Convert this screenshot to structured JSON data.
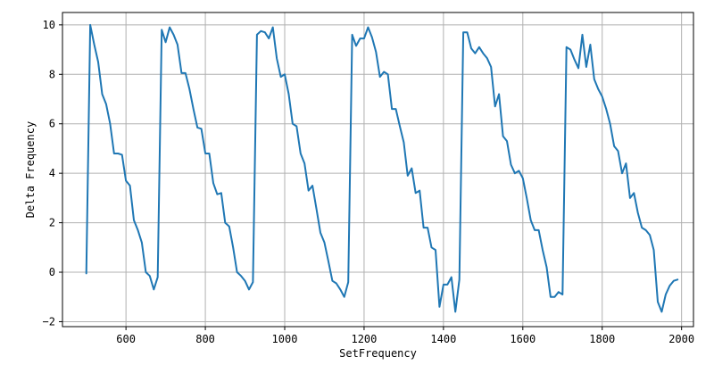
{
  "chart_data": {
    "type": "line",
    "title": "",
    "xlabel": "SetFrequency",
    "ylabel": "Delta Frequency",
    "xlim": [
      440,
      2030
    ],
    "ylim": [
      -2.2,
      10.5
    ],
    "xticks": [
      600,
      800,
      1000,
      1200,
      1400,
      1600,
      1800,
      2000
    ],
    "yticks": [
      -2,
      0,
      2,
      4,
      6,
      8,
      10
    ],
    "grid": true,
    "legend": "none",
    "line_color": "#1f77b4",
    "series": [
      {
        "x": [
          500,
          510,
          520,
          530,
          540,
          550,
          560,
          570,
          580,
          590,
          600,
          610,
          620,
          630,
          640,
          650,
          660,
          670,
          680,
          690,
          700,
          710,
          720,
          730,
          740,
          750,
          760,
          770,
          780,
          790,
          800,
          810,
          820,
          830,
          840,
          850,
          860,
          870,
          880,
          890,
          900,
          910,
          920,
          930,
          940,
          950,
          960,
          970,
          980,
          990,
          1000,
          1010,
          1020,
          1030,
          1040,
          1050,
          1060,
          1070,
          1080,
          1090,
          1100,
          1110,
          1120,
          1130,
          1140,
          1150,
          1160,
          1170,
          1180,
          1190,
          1200,
          1210,
          1220,
          1230,
          1240,
          1250,
          1260,
          1270,
          1280,
          1290,
          1300,
          1310,
          1320,
          1330,
          1340,
          1350,
          1360,
          1370,
          1380,
          1390,
          1400,
          1410,
          1420,
          1430,
          1440,
          1450,
          1460,
          1470,
          1480,
          1490,
          1500,
          1510,
          1520,
          1530,
          1540,
          1550,
          1560,
          1570,
          1580,
          1590,
          1600,
          1610,
          1620,
          1630,
          1640,
          1650,
          1660,
          1670,
          1680,
          1690,
          1700,
          1710,
          1720,
          1730,
          1740,
          1750,
          1760,
          1770,
          1780,
          1790,
          1800,
          1810,
          1820,
          1830,
          1840,
          1850,
          1860,
          1870,
          1880,
          1890,
          1900,
          1910,
          1920,
          1930,
          1940,
          1950,
          1960,
          1970,
          1980,
          1990
        ],
        "y": [
          -0.05,
          10,
          9.2,
          8.5,
          7.2,
          6.8,
          6,
          4.8,
          4.8,
          4.75,
          3.7,
          3.5,
          2.1,
          1.7,
          1.2,
          0,
          -0.15,
          -0.7,
          -0.2,
          9.8,
          9.3,
          9.9,
          9.6,
          9.2,
          8.05,
          8.05,
          7.4,
          6.6,
          5.85,
          5.8,
          4.8,
          4.8,
          3.6,
          3.15,
          3.2,
          2,
          1.85,
          1,
          0,
          -0.15,
          -0.35,
          -0.7,
          -0.4,
          9.6,
          9.75,
          9.7,
          9.45,
          9.9,
          8.65,
          7.9,
          8,
          7.2,
          6,
          5.9,
          4.8,
          4.4,
          3.3,
          3.5,
          2.55,
          1.6,
          1.2,
          0.45,
          -0.35,
          -0.45,
          -0.7,
          -1,
          -0.4,
          9.6,
          9.15,
          9.45,
          9.45,
          9.9,
          9.5,
          8.9,
          7.9,
          8.1,
          8,
          6.6,
          6.6,
          5.9,
          5.25,
          3.9,
          4.2,
          3.2,
          3.3,
          1.8,
          1.8,
          1,
          0.9,
          -1.4,
          -0.5,
          -0.5,
          -0.2,
          -1.6,
          -0.3,
          9.7,
          9.7,
          9.05,
          8.85,
          9.1,
          8.85,
          8.65,
          8.3,
          6.7,
          7.2,
          5.5,
          5.3,
          4.35,
          4,
          4.1,
          3.8,
          3,
          2.1,
          1.7,
          1.7,
          0.9,
          0.2,
          -1,
          -1,
          -0.8,
          -0.9,
          9.1,
          9,
          8.6,
          8.25,
          9.6,
          8.3,
          9.2,
          7.8,
          7.4,
          7.1,
          6.6,
          6,
          5.1,
          4.9,
          4,
          4.4,
          3,
          3.2,
          2.4,
          1.8,
          1.7,
          1.5,
          0.9,
          -1.2,
          -1.6,
          -0.9,
          -0.55,
          -0.35,
          -0.3
        ]
      }
    ]
  }
}
